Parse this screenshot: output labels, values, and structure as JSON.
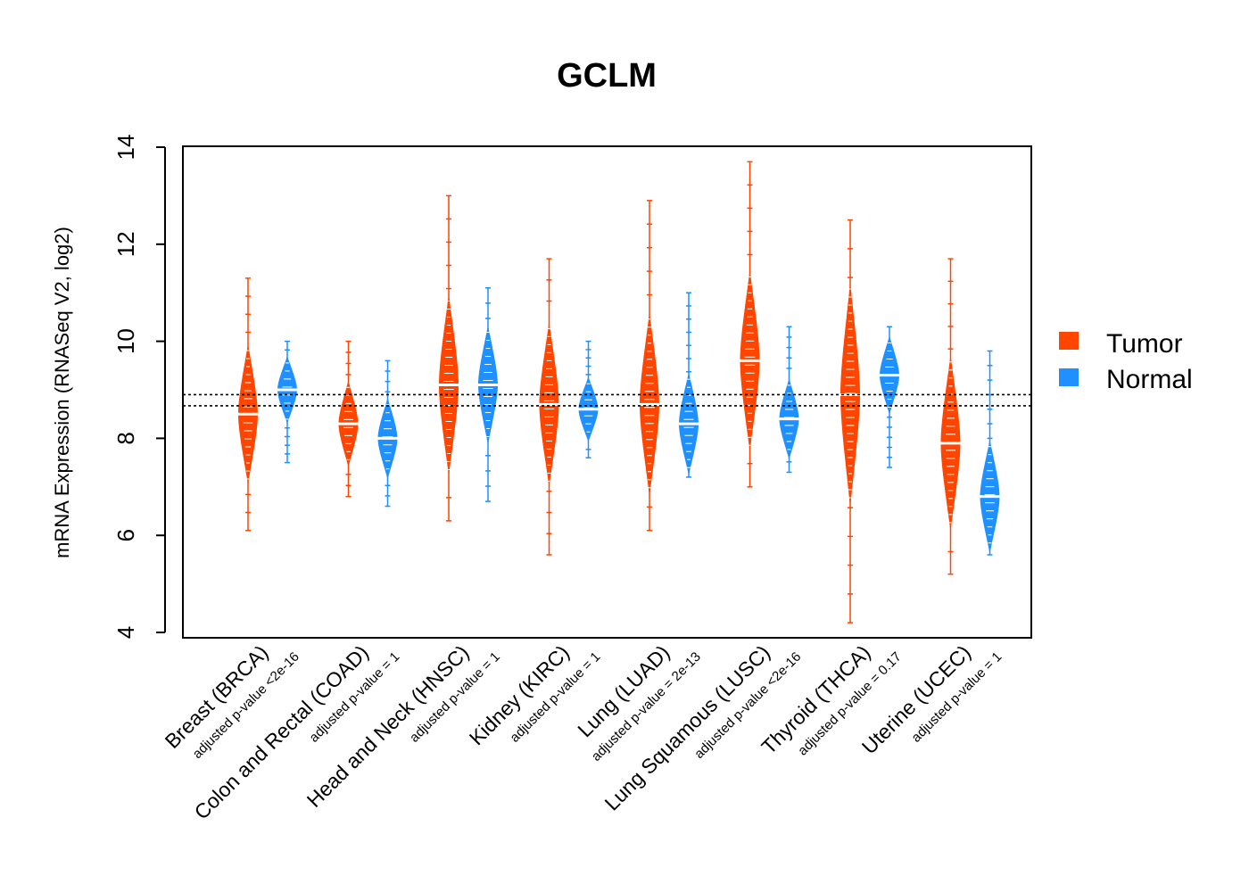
{
  "chart_data": {
    "type": "violin",
    "title": "GCLM",
    "ylabel": "mRNA Expression (RNASeq V2, log2)",
    "ylim": [
      4,
      14
    ],
    "yticks": [
      4,
      6,
      8,
      10,
      12,
      14
    ],
    "reference_lines": [
      8.67,
      8.9
    ],
    "legend": [
      {
        "name": "Tumor",
        "color": "#FF4500"
      },
      {
        "name": "Normal",
        "color": "#1E90FF"
      }
    ],
    "groups": [
      {
        "label": "Breast (BRCA)",
        "pvalue": "adjusted p-value <2e-16",
        "tumor": {
          "min": 6.1,
          "max": 11.3,
          "median": 8.5
        },
        "normal": {
          "min": 7.5,
          "max": 10.0,
          "median": 9.0
        }
      },
      {
        "label": "Colon and Rectal (COAD)",
        "pvalue": "adjusted p-value = 1",
        "tumor": {
          "min": 6.8,
          "max": 10.0,
          "median": 8.3
        },
        "normal": {
          "min": 6.6,
          "max": 9.6,
          "median": 8.0
        }
      },
      {
        "label": "Head and Neck (HNSC)",
        "pvalue": "adjusted p-value = 1",
        "tumor": {
          "min": 6.3,
          "max": 13.0,
          "median": 9.1
        },
        "normal": {
          "min": 6.7,
          "max": 11.1,
          "median": 9.1
        }
      },
      {
        "label": "Kidney (KIRC)",
        "pvalue": "adjusted p-value = 1",
        "tumor": {
          "min": 5.6,
          "max": 11.7,
          "median": 8.7
        },
        "normal": {
          "min": 7.6,
          "max": 10.0,
          "median": 8.6
        }
      },
      {
        "label": "Lung (LUAD)",
        "pvalue": "adjusted p-value = 2e-13",
        "tumor": {
          "min": 6.1,
          "max": 12.9,
          "median": 8.7
        },
        "normal": {
          "min": 7.2,
          "max": 11.0,
          "median": 8.3
        }
      },
      {
        "label": "Lung Squamous (LUSC)",
        "pvalue": "adjusted p-value <2e-16",
        "tumor": {
          "min": 7.0,
          "max": 13.7,
          "median": 9.6
        },
        "normal": {
          "min": 7.3,
          "max": 10.3,
          "median": 8.4
        }
      },
      {
        "label": "Thyroid (THCA)",
        "pvalue": "adjusted p-value = 0.17",
        "tumor": {
          "min": 4.2,
          "max": 12.5,
          "median": 8.9
        },
        "normal": {
          "min": 7.4,
          "max": 10.3,
          "median": 9.3
        }
      },
      {
        "label": "Uterine (UCEC)",
        "pvalue": "adjusted p-value = 1",
        "tumor": {
          "min": 5.2,
          "max": 11.7,
          "median": 7.9
        },
        "normal": {
          "min": 5.6,
          "max": 9.8,
          "median": 6.8
        }
      }
    ]
  }
}
